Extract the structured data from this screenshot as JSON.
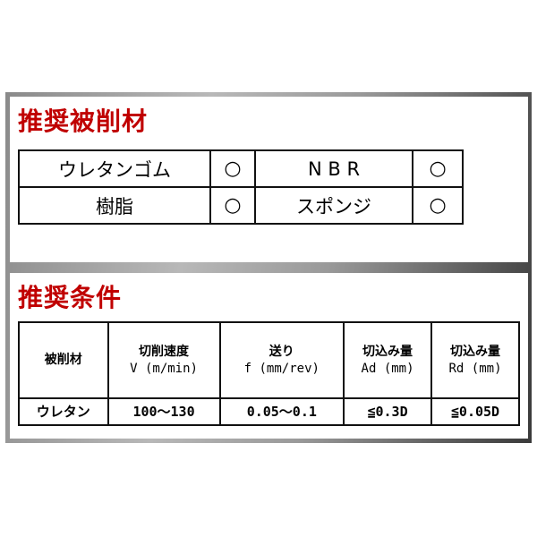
{
  "materials": {
    "title": "推奨被削材",
    "rows": [
      [
        {
          "name": "ウレタンゴム",
          "mark": "○"
        },
        {
          "name": "N B R",
          "mark": "○"
        }
      ],
      [
        {
          "name": "樹脂",
          "mark": "○"
        },
        {
          "name": "スポンジ",
          "mark": "○"
        }
      ]
    ]
  },
  "conditions": {
    "title": "推奨条件",
    "headers": [
      {
        "line1": "被削材",
        "line2": ""
      },
      {
        "line1": "切削速度",
        "line2": "V (m/min)"
      },
      {
        "line1": "送り",
        "line2": "f (mm/rev)"
      },
      {
        "line1": "切込み量",
        "line2": "Ad (mm)"
      },
      {
        "line1": "切込み量",
        "line2": "Rd (mm)"
      }
    ],
    "row": [
      "ウレタン",
      "100〜130",
      "0.05〜0.1",
      "≦0.3D",
      "≦0.05D"
    ]
  },
  "colors": {
    "title": "#c00000",
    "border": "#111111"
  }
}
